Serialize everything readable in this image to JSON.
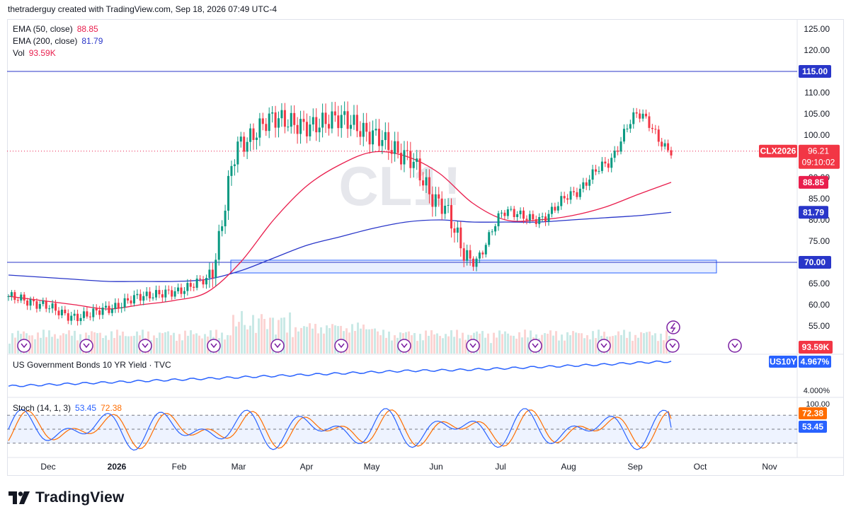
{
  "header": {
    "credit": "thetraderguy created with TradingView.com, Sep 18, 2026 07:49 UTC-4"
  },
  "watermark": "CL1!",
  "legend": {
    "ema50": {
      "label": "EMA (50, close)",
      "value": "88.85",
      "color": "#e91e4d"
    },
    "ema200": {
      "label": "EMA (200, close)",
      "value": "81.79",
      "color": "#2936c9"
    },
    "vol": {
      "label": "Vol",
      "value": "93.59K",
      "color": "#e91e4d"
    }
  },
  "bonds": {
    "label": "US Government Bonds 10 YR Yield · TVC",
    "ticker": "US10Y",
    "value": "4.967%",
    "axis_label": "4.000%",
    "color": "#2962ff"
  },
  "stoch": {
    "label": "Stoch (14, 1, 3)",
    "k_value": "53.45",
    "d_value": "72.38",
    "k_color": "#2962ff",
    "d_color": "#ff6d00",
    "axis_label": "100.00"
  },
  "price_axis_labels": [
    "125.00",
    "120.00",
    "115.00",
    "110.00",
    "105.00",
    "100.00",
    "95.00",
    "90.00",
    "85.00",
    "80.00",
    "75.00",
    "70.00",
    "65.00",
    "60.00",
    "55.00"
  ],
  "time_axis_labels": [
    "Dec",
    "2026",
    "Feb",
    "Mar",
    "Apr",
    "May",
    "Jun",
    "Jul",
    "Aug",
    "Sep",
    "Oct",
    "Nov"
  ],
  "badges": {
    "level_115": "115.00",
    "level_70": "70.00",
    "symbol": "CLX2026",
    "last_price": "96.21",
    "countdown": "09:10:02",
    "ema50": "88.85",
    "ema200": "81.79",
    "volume": "93.59K",
    "us10y_ticker": "US10Y",
    "us10y_value": "4.967%",
    "stoch_d": "72.38",
    "stoch_k": "53.45"
  },
  "branding": {
    "name": "TradingView"
  },
  "chart_data": {
    "type": "line",
    "title": "CL1!",
    "symbol": "CLX2026",
    "x": [
      "Nov-28",
      "Dec-15",
      "Jan-01",
      "Jan-15",
      "Feb-01",
      "Feb-15",
      "Mar-01",
      "Mar-15",
      "Apr-01",
      "Apr-15",
      "May-01",
      "May-15",
      "Jun-01",
      "Jun-15",
      "Jul-01",
      "Jul-15",
      "Aug-01",
      "Aug-15",
      "Sep-01",
      "Sep-10",
      "Sep-18"
    ],
    "series": [
      {
        "name": "CL1!",
        "values": [
          62,
          60,
          57,
          59,
          62,
          63,
          66,
          98,
          104,
          102,
          104,
          100,
          95,
          84,
          70,
          82,
          80,
          86,
          93,
          105,
          96.21
        ]
      },
      {
        "name": "EMA (50, close)",
        "values": [
          62,
          61,
          60,
          59,
          60,
          61,
          63,
          70,
          80,
          88,
          93,
          96,
          95,
          91,
          84,
          80,
          80,
          81,
          83,
          86,
          88.85
        ]
      },
      {
        "name": "EMA (200, close)",
        "values": [
          67,
          66.5,
          66,
          65.5,
          65.5,
          65.5,
          66,
          68,
          71,
          74,
          76,
          78,
          79.5,
          80,
          79.5,
          79.5,
          79.5,
          80,
          80.5,
          81,
          81.79
        ]
      }
    ],
    "horizontal_levels": [
      115,
      70
    ],
    "zone": [
      67.5,
      70.5
    ],
    "ylim": [
      55,
      125
    ],
    "yticks": [
      125,
      120,
      115,
      110,
      105,
      100,
      95,
      90,
      85,
      80,
      75,
      70,
      65,
      60,
      55
    ],
    "volume": {
      "last": "93.59K"
    },
    "us10y": {
      "values": [
        4.0,
        4.05,
        4.1,
        4.15,
        4.2,
        4.25,
        4.3,
        4.35,
        4.4,
        4.45,
        4.5,
        4.55,
        4.6,
        4.62,
        4.65,
        4.7,
        4.75,
        4.8,
        4.85,
        4.92,
        4.967
      ],
      "last": 4.967
    },
    "stoch": {
      "k_last": 53.45,
      "d_last": 72.38,
      "bands": [
        80,
        50,
        20
      ],
      "ylim": [
        0,
        100
      ]
    }
  }
}
